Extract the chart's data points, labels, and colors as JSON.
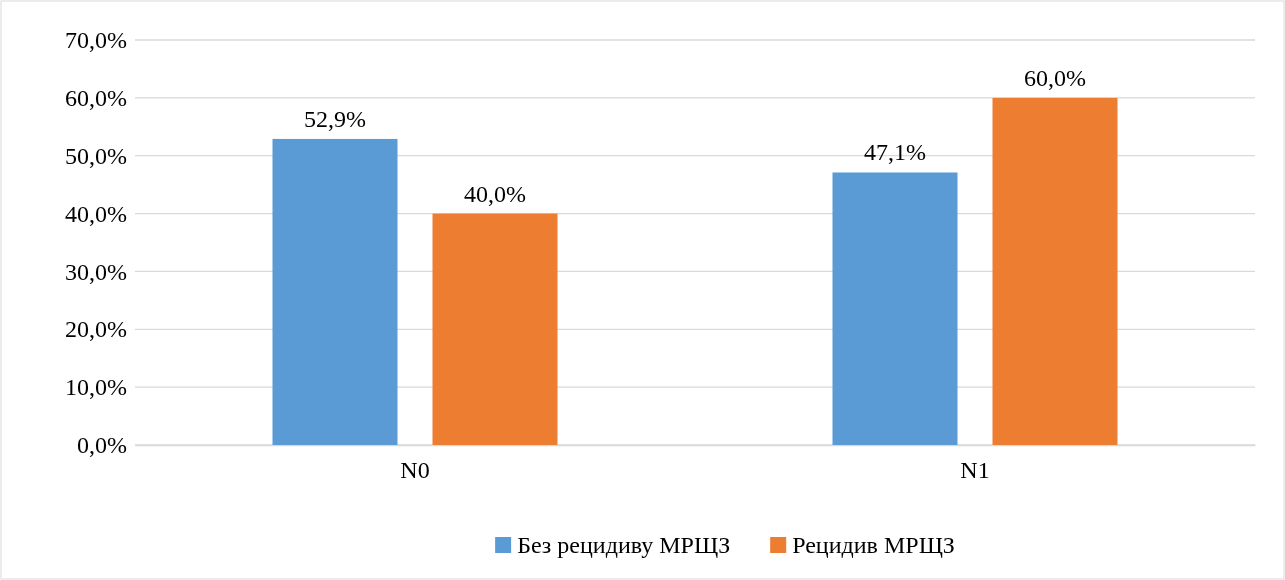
{
  "chart_data": {
    "type": "bar",
    "categories": [
      "N0",
      "N1"
    ],
    "series": [
      {
        "name": "Без рецидиву МРЩЗ",
        "color": "#5b9bd5",
        "values": [
          52.9,
          47.1
        ],
        "value_labels": [
          "52,9%",
          "47,1%"
        ]
      },
      {
        "name": "Рецидив МРЩЗ",
        "color": "#ed7d31",
        "values": [
          40.0,
          60.0
        ],
        "value_labels": [
          "40,0%",
          "60,0%"
        ]
      }
    ],
    "ylim": [
      0,
      70
    ],
    "yticks": [
      {
        "value": 0,
        "label": "0,0%"
      },
      {
        "value": 10,
        "label": "10,0%"
      },
      {
        "value": 20,
        "label": "20,0%"
      },
      {
        "value": 30,
        "label": "30,0%"
      },
      {
        "value": 40,
        "label": "40,0%"
      },
      {
        "value": 50,
        "label": "50,0%"
      },
      {
        "value": 60,
        "label": "60,0%"
      },
      {
        "value": 70,
        "label": "70,0%"
      }
    ],
    "grid": "y",
    "legend": "bottom"
  }
}
